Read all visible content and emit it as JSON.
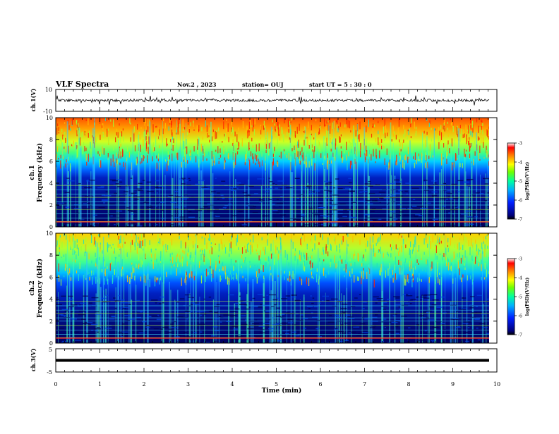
{
  "header": {
    "title": "VLF Spectra",
    "date": "Nov.2 , 2023",
    "station": "station= OUJ",
    "start": "start UT = 5 : 30 : 0"
  },
  "chart_data": [
    {
      "type": "line",
      "name": "ch1-waveform",
      "ylabel": "ch.1(V)",
      "ylim": [
        -10,
        10
      ],
      "yticks": [
        "10",
        "-10"
      ],
      "xlim": [
        0,
        10
      ]
    },
    {
      "type": "heatmap",
      "name": "ch1-spectrogram",
      "ylabel": "ch.1 Frequency (kHz)",
      "ylim": [
        0,
        10
      ],
      "yticks": [
        "0",
        "2",
        "4",
        "6",
        "8",
        "10"
      ],
      "xlim": [
        0,
        10
      ],
      "colorbar": {
        "label": "log(PSD)(V²/Hz)",
        "range": [
          -7,
          -3
        ],
        "ticks": [
          "-3",
          "-4",
          "-5",
          "-6",
          "-7"
        ]
      }
    },
    {
      "type": "heatmap",
      "name": "ch2-spectrogram",
      "ylabel": "ch.2 Frequency (kHz)",
      "ylim": [
        0,
        10
      ],
      "yticks": [
        "0",
        "2",
        "4",
        "6",
        "8",
        "10"
      ],
      "xlim": [
        0,
        10
      ],
      "colorbar": {
        "label": "log(PSD)(V²/Hz)",
        "range": [
          -7,
          -3
        ],
        "ticks": [
          "-3",
          "-4",
          "-5",
          "-6",
          "-7"
        ]
      }
    },
    {
      "type": "line",
      "name": "ch3-waveform",
      "ylabel": "ch.3(V)",
      "ylim": [
        -5,
        5
      ],
      "yticks": [
        "5",
        "-5"
      ],
      "xlim": [
        0,
        10
      ]
    }
  ],
  "xaxis": {
    "label": "Time (min)",
    "ticks": [
      "0",
      "1",
      "2",
      "3",
      "4",
      "5",
      "6",
      "7",
      "8",
      "9",
      "10"
    ]
  },
  "labels": {
    "ch1_wave": "ch.1(V)",
    "ch1_spec_a": "ch.1",
    "ch1_spec_b": "Frequency (kHz)",
    "ch2_spec_a": "ch.2",
    "ch2_spec_b": "Frequency (kHz)",
    "ch3_wave": "ch.3(V)",
    "cbar": "log(PSD)(V²/Hz)"
  },
  "colors": {
    "axis": "#000000",
    "background": "#000080"
  }
}
